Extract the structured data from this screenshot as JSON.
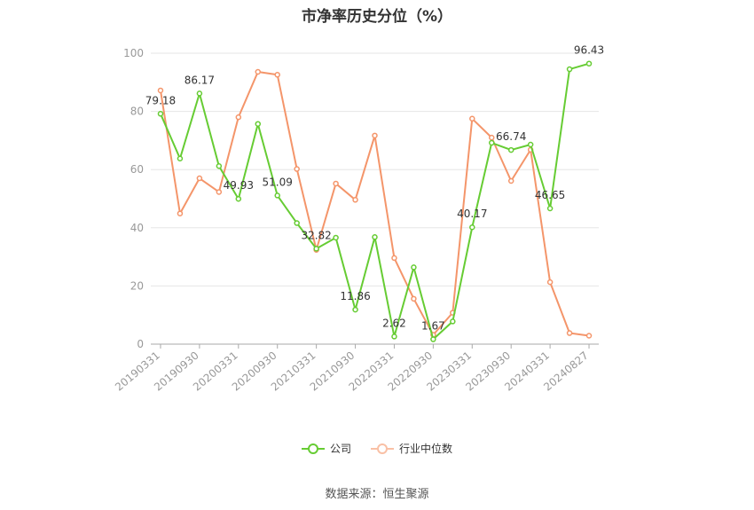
{
  "chart_data": {
    "type": "line",
    "title": "市净率历史分位（%）",
    "x": [
      "20190331",
      "20190630",
      "20190930",
      "20191231",
      "20200331",
      "20200630",
      "20200930",
      "20201231",
      "20210331",
      "20210630",
      "20210930",
      "20211231",
      "20220331",
      "20220630",
      "20220930",
      "20221231",
      "20230331",
      "20230630",
      "20230930",
      "20231231",
      "20240331",
      "20240630",
      "20240827"
    ],
    "x_tick_labels": [
      "20190331",
      "20190930",
      "20200331",
      "20200930",
      "20210331",
      "20210930",
      "20220331",
      "20220930",
      "20230331",
      "20230930",
      "20240331",
      "20240827"
    ],
    "ylim": [
      0,
      100
    ],
    "y_ticks": [
      0,
      20,
      40,
      60,
      80,
      100
    ],
    "grid": true,
    "legend_position": "bottom",
    "series": [
      {
        "name": "公司",
        "color": "#66cc33",
        "values": [
          79.18,
          63.8,
          86.17,
          61.2,
          49.93,
          75.7,
          51.09,
          41.6,
          32.82,
          36.6,
          11.86,
          36.8,
          2.62,
          26.4,
          1.67,
          7.8,
          40.17,
          69.2,
          66.74,
          68.6,
          46.65,
          94.5,
          96.43
        ],
        "labels": [
          "79.18",
          "",
          "86.17",
          "",
          "49.93",
          "",
          "51.09",
          "",
          "32.82",
          "",
          "11.86",
          "",
          "2.62",
          "",
          "1.67",
          "",
          "40.17",
          "",
          "66.74",
          "",
          "46.65",
          "",
          "96.43"
        ]
      },
      {
        "name": "行业中位数",
        "color": "#f4956a",
        "values": [
          87.2,
          44.9,
          57.0,
          52.3,
          78.0,
          93.6,
          92.6,
          60.2,
          32.4,
          55.2,
          49.6,
          71.7,
          29.6,
          15.6,
          3.2,
          10.8,
          77.5,
          71.0,
          56.1,
          66.8,
          21.3,
          3.8,
          2.9
        ]
      }
    ]
  },
  "source_text": "数据来源：恒生聚源"
}
